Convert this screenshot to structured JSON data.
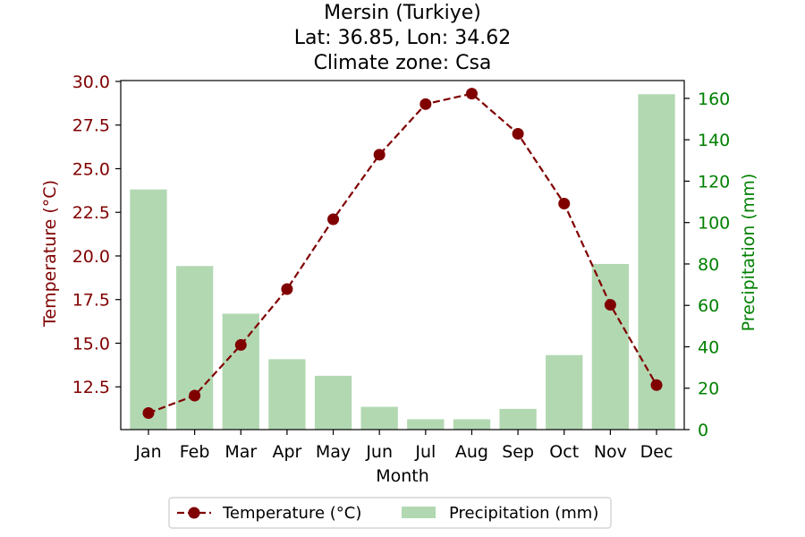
{
  "chart_data": {
    "type": "bar+line",
    "title_lines": [
      "Mersin (Turkiye)",
      "Lat: 36.85, Lon: 34.62",
      "Climate zone: Csa"
    ],
    "xlabel": "Month",
    "ylabel_left": "Temperature (°C)",
    "ylabel_right": "Precipitation (mm)",
    "categories": [
      "Jan",
      "Feb",
      "Mar",
      "Apr",
      "May",
      "Jun",
      "Jul",
      "Aug",
      "Sep",
      "Oct",
      "Nov",
      "Dec"
    ],
    "temperature": {
      "name": "Temperature (°C)",
      "values": [
        11.0,
        12.0,
        14.9,
        18.1,
        22.1,
        25.8,
        28.7,
        29.3,
        27.0,
        23.0,
        17.2,
        12.6
      ],
      "ylim": [
        10.05,
        30.05
      ],
      "ticks": [
        12.5,
        15.0,
        17.5,
        20.0,
        22.5,
        25.0,
        27.5,
        30.0
      ],
      "color": "#800000"
    },
    "precipitation": {
      "name": "Precipitation (mm)",
      "values": [
        116,
        79,
        56,
        34,
        26,
        11,
        5,
        5,
        10,
        36,
        80,
        162
      ],
      "ylim": [
        0,
        168.6
      ],
      "ticks": [
        0,
        20,
        40,
        60,
        80,
        100,
        120,
        140,
        160
      ],
      "color": "#b2d8b2",
      "axis_color": "#008000"
    },
    "legend_position": "bottom-center",
    "grid": false
  }
}
